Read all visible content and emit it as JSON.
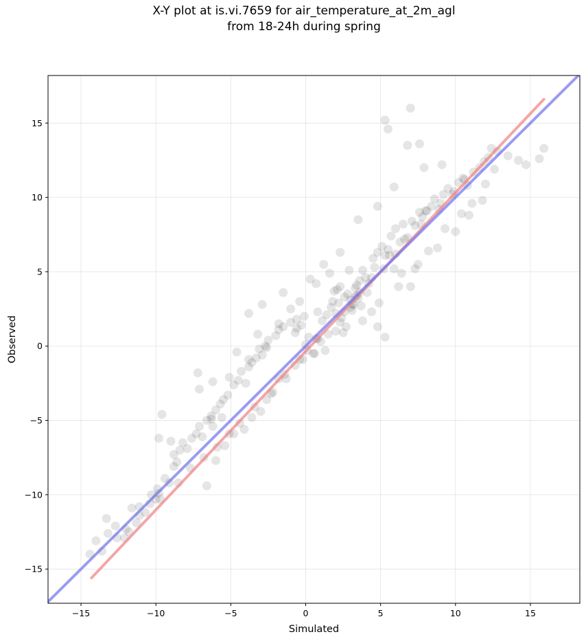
{
  "chart_data": {
    "type": "scatter",
    "title_lines": [
      "X-Y plot at is.vi.7659 for air_temperature_at_2m_agl",
      "from 18-24h during spring"
    ],
    "xlabel": "Simulated",
    "ylabel": "Observed",
    "xlim": [
      -17.2,
      18.3
    ],
    "ylim": [
      -17.3,
      18.2
    ],
    "xticks": [
      -15,
      -10,
      -5,
      0,
      5,
      10,
      15
    ],
    "yticks": [
      -15,
      -10,
      -5,
      0,
      5,
      10,
      15
    ],
    "xtick_labels": [
      "−15",
      "−10",
      "−5",
      "0",
      "5",
      "10",
      "15"
    ],
    "ytick_labels": [
      "−15",
      "−10",
      "−5",
      "0",
      "5",
      "10",
      "15"
    ],
    "grid": true,
    "colors": {
      "points": "#000000",
      "fit_line": "#f08080",
      "identity_line": "#7070ee"
    },
    "lines": [
      {
        "role": "fit",
        "x": [
          -14.3,
          15.9
        ],
        "y": [
          -15.6,
          16.6
        ]
      },
      {
        "role": "identity",
        "x": [
          -17.2,
          18.3
        ],
        "y": [
          -17.2,
          18.3
        ]
      }
    ],
    "points": {
      "x": [
        -14.4,
        -14.0,
        -13.6,
        -13.3,
        -13.2,
        -12.7,
        -12.1,
        -11.8,
        -11.6,
        -11.3,
        -11.1,
        -10.7,
        -10.3,
        -10.0,
        -9.9,
        -9.8,
        -9.4,
        -9.1,
        -8.8,
        -8.8,
        -8.6,
        -8.4,
        -8.2,
        -7.9,
        -7.6,
        -7.3,
        -7.1,
        -6.9,
        -6.6,
        -6.3,
        -6.3,
        -6.2,
        -6.0,
        -5.7,
        -5.5,
        -5.2,
        -4.8,
        -4.5,
        -4.3,
        -4.0,
        -3.8,
        -3.6,
        -3.3,
        -3.1,
        -2.9,
        -2.7,
        -2.5,
        -2.0,
        -1.8,
        -1.5,
        -1.0,
        -0.7,
        -0.6,
        -0.3,
        -0.1,
        0.0,
        0.1,
        0.2,
        0.7,
        0.8,
        1.1,
        1.4,
        1.7,
        1.8,
        2.0,
        2.1,
        2.2,
        2.4,
        2.8,
        3.0,
        3.0,
        3.1,
        3.2,
        3.3,
        3.4,
        3.5,
        3.6,
        3.7,
        3.8,
        4.0,
        4.2,
        4.5,
        4.6,
        4.8,
        5.1,
        5.2,
        5.3,
        5.5,
        5.7,
        6.0,
        6.0,
        6.3,
        6.5,
        6.8,
        7.1,
        7.3,
        7.6,
        7.8,
        8.0,
        8.4,
        8.6,
        9.0,
        9.2,
        9.5,
        9.9,
        10.2,
        10.5,
        10.8,
        11.2,
        11.6,
        11.9,
        12.2,
        12.6,
        12.8,
        13.5,
        14.2,
        14.7,
        15.6,
        15.9,
        -9.6,
        -9.0,
        -7.2,
        -6.2,
        -5.1,
        -4.6,
        -3.8,
        -3.2,
        -2.6,
        -1.8,
        -1.0,
        -0.4,
        0.3,
        1.2,
        1.6,
        1.9,
        2.3,
        2.6,
        2.7,
        2.9,
        3.4,
        4.1,
        4.4,
        4.8,
        5.3,
        5.9,
        6.4,
        7.0,
        7.5,
        8.2,
        9.3,
        10.4,
        11.1,
        12.0,
        5.3,
        5.5,
        6.8,
        7.0,
        7.6,
        7.9,
        9.1,
        8.1,
        1.5,
        0.8,
        0.6,
        -0.7,
        -1.8,
        -2.6,
        -3.6,
        -4.8,
        -5.4,
        -6.0,
        -4.1,
        -3.0,
        -2.2,
        -1.3,
        -0.4,
        1.3,
        2.5,
        3.8,
        4.9,
        6.2,
        7.3,
        8.8,
        10.0,
        10.9,
        11.8,
        -12.6,
        -12.0,
        -11.1,
        -10.4,
        -9.7,
        -8.5,
        -7.7,
        -6.8,
        -5.9,
        -5.1,
        -4.4,
        -3.4,
        -2.3,
        -1.4,
        -0.2,
        0.5,
        1.0,
        2.0,
        2.3,
        2.6,
        3.1,
        3.3,
        3.6,
        4.4,
        5.6,
        6.6,
        7.7,
        8.9,
        9.8,
        10.6,
        12.4,
        -2.9,
        -3.8,
        -1.5,
        0.7,
        2.3,
        3.5,
        4.8,
        5.9,
        -0.6,
        -5.6,
        -7.1,
        -9.8,
        -6.6
      ],
      "y": [
        -14.0,
        -13.1,
        -13.8,
        -11.6,
        -12.6,
        -12.1,
        -12.9,
        -12.5,
        -10.9,
        -11.9,
        -10.8,
        -11.2,
        -10.0,
        -10.3,
        -9.6,
        -9.9,
        -8.9,
        -9.2,
        -7.3,
        -8.1,
        -7.8,
        -7.0,
        -6.5,
        -6.9,
        -6.2,
        -5.9,
        -5.4,
        -6.1,
        -5.0,
        -4.9,
        -4.7,
        -5.4,
        -4.3,
        -3.9,
        -3.6,
        -3.3,
        -2.6,
        -2.3,
        -1.7,
        -2.5,
        -1.4,
        -1.1,
        -0.8,
        -0.2,
        -0.6,
        0.0,
        0.4,
        0.7,
        1.1,
        1.3,
        1.6,
        0.9,
        1.8,
        1.4,
        2.0,
        0.1,
        -0.3,
        0.6,
        0.5,
        2.3,
        1.7,
        2.1,
        2.6,
        3.0,
        2.2,
        3.8,
        2.9,
        1.9,
        3.5,
        2.6,
        3.1,
        2.4,
        2.8,
        3.9,
        4.1,
        3.2,
        4.4,
        2.7,
        5.1,
        4.6,
        4.2,
        5.9,
        5.3,
        6.3,
        6.7,
        5.2,
        6.1,
        6.5,
        7.4,
        6.2,
        7.9,
        7.0,
        8.2,
        7.3,
        8.4,
        8.1,
        9.0,
        8.7,
        9.1,
        9.4,
        9.9,
        9.6,
        10.2,
        10.6,
        10.4,
        11.0,
        11.3,
        10.8,
        11.7,
        12.0,
        12.4,
        12.7,
        11.9,
        13.1,
        12.8,
        12.5,
        12.2,
        12.6,
        13.3,
        -4.6,
        -6.4,
        -1.8,
        -2.4,
        -2.1,
        -0.4,
        -0.9,
        0.8,
        -0.1,
        1.5,
        2.5,
        3.0,
        4.5,
        5.5,
        4.9,
        3.7,
        4.0,
        3.3,
        1.3,
        5.1,
        3.4,
        3.6,
        2.3,
        1.3,
        0.6,
        5.2,
        4.9,
        4.0,
        5.5,
        6.4,
        7.9,
        8.9,
        9.6,
        10.9,
        15.2,
        14.6,
        13.5,
        16.0,
        13.6,
        12.0,
        12.2,
        9.1,
        0.8,
        0.5,
        -0.5,
        -1.3,
        -2.2,
        -3.6,
        -4.8,
        -5.9,
        -6.7,
        -7.7,
        -5.6,
        -4.4,
        -3.1,
        -2.2,
        -0.9,
        -0.3,
        0.9,
        1.7,
        2.9,
        4.0,
        5.2,
        6.6,
        7.7,
        8.8,
        9.8,
        -12.9,
        -12.3,
        -11.4,
        -10.6,
        -10.3,
        -9.2,
        -8.2,
        -7.5,
        -6.8,
        -5.9,
        -5.2,
        -4.1,
        -3.2,
        -1.9,
        -0.9,
        -0.5,
        0.3,
        1.0,
        1.6,
        2.3,
        2.8,
        3.3,
        3.6,
        4.6,
        6.1,
        7.2,
        8.2,
        9.2,
        10.2,
        11.2,
        13.3,
        2.8,
        2.2,
        3.6,
        4.2,
        6.3,
        8.5,
        9.4,
        10.7,
        1.2,
        -4.8,
        -2.9,
        -6.2,
        -9.4
      ]
    }
  }
}
